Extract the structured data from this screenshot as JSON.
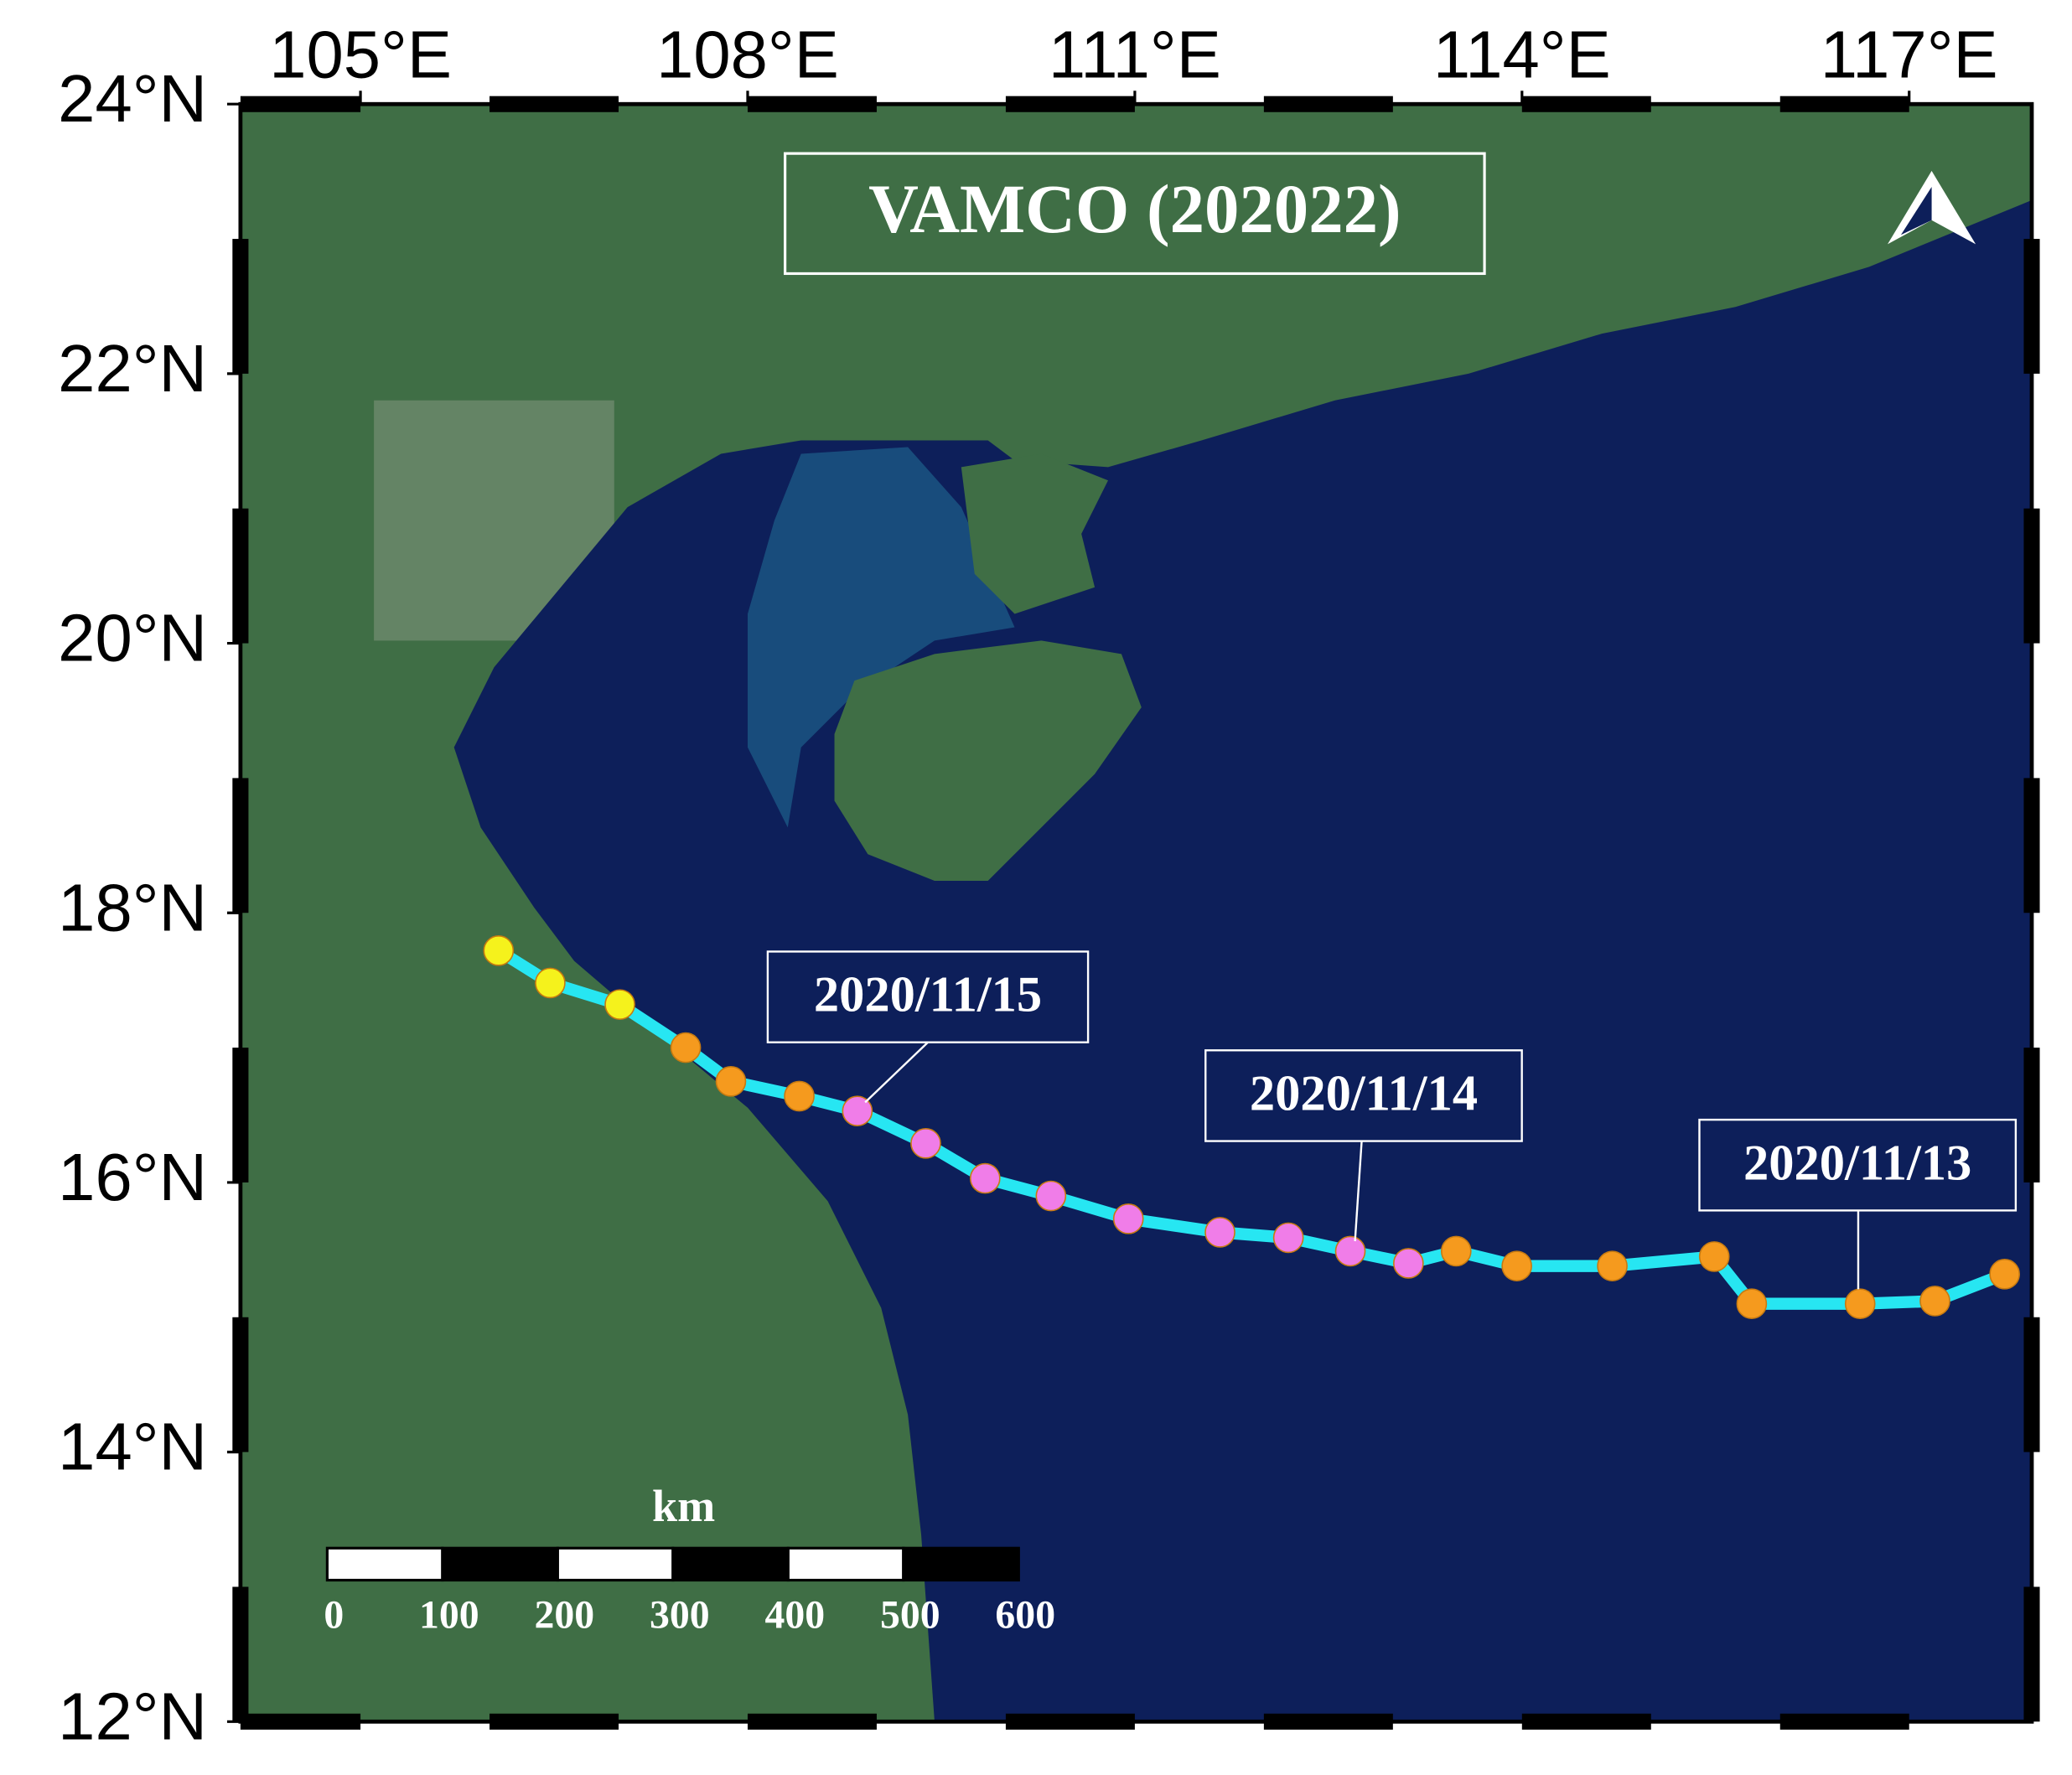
{
  "map": {
    "title": "VAMCO (202022)",
    "xlim": [
      104.07,
      117.95
    ],
    "ylim": [
      12,
      24
    ],
    "lon_ticks": [
      {
        "value": 105,
        "label": "105°E"
      },
      {
        "value": 108,
        "label": "108°E"
      },
      {
        "value": 111,
        "label": "111°E"
      },
      {
        "value": 114,
        "label": "114°E"
      },
      {
        "value": 117,
        "label": "117°E"
      }
    ],
    "lat_ticks": [
      {
        "value": 12,
        "label": "12°N"
      },
      {
        "value": 14,
        "label": "14°N"
      },
      {
        "value": 16,
        "label": "16°N"
      },
      {
        "value": 18,
        "label": "18°N"
      },
      {
        "value": 20,
        "label": "20°N"
      },
      {
        "value": 22,
        "label": "22°N"
      },
      {
        "value": 24,
        "label": "24°N"
      }
    ],
    "track": {
      "color": "#27e6f2",
      "points": [
        {
          "lon": 106.07,
          "lat": 17.72,
          "color": "#f5f21c"
        },
        {
          "lon": 106.47,
          "lat": 17.48,
          "color": "#f5f21c"
        },
        {
          "lon": 107.01,
          "lat": 17.32,
          "color": "#f5f21c"
        },
        {
          "lon": 107.52,
          "lat": 17.0,
          "color": "#f59a1e"
        },
        {
          "lon": 107.87,
          "lat": 16.75,
          "color": "#f59a1e"
        },
        {
          "lon": 108.4,
          "lat": 16.64,
          "color": "#f59a1e"
        },
        {
          "lon": 108.85,
          "lat": 16.53,
          "color": "#f07de8"
        },
        {
          "lon": 109.38,
          "lat": 16.29,
          "color": "#f07de8"
        },
        {
          "lon": 109.84,
          "lat": 16.03,
          "color": "#f07de8"
        },
        {
          "lon": 110.35,
          "lat": 15.9,
          "color": "#f07de8"
        },
        {
          "lon": 110.95,
          "lat": 15.73,
          "color": "#f07de8"
        },
        {
          "lon": 111.66,
          "lat": 15.63,
          "color": "#f07de8"
        },
        {
          "lon": 112.19,
          "lat": 15.59,
          "color": "#f07de8"
        },
        {
          "lon": 112.67,
          "lat": 15.49,
          "color": "#f07de8"
        },
        {
          "lon": 113.12,
          "lat": 15.4,
          "color": "#f07de8"
        },
        {
          "lon": 113.49,
          "lat": 15.49,
          "color": "#f59a1e"
        },
        {
          "lon": 113.96,
          "lat": 15.38,
          "color": "#f59a1e"
        },
        {
          "lon": 114.7,
          "lat": 15.38,
          "color": "#f59a1e"
        },
        {
          "lon": 115.49,
          "lat": 15.45,
          "color": "#f59a1e"
        },
        {
          "lon": 115.78,
          "lat": 15.1,
          "color": "#f59a1e"
        },
        {
          "lon": 116.62,
          "lat": 15.1,
          "color": "#f59a1e"
        },
        {
          "lon": 117.2,
          "lat": 15.12,
          "color": "#f59a1e"
        },
        {
          "lon": 117.74,
          "lat": 15.32,
          "color": "#f59a1e"
        }
      ]
    },
    "date_labels": [
      "2020/11/15",
      "2020/11/14",
      "2020/11/13"
    ],
    "scale_bar": {
      "unit": "km",
      "ticks": [
        0,
        100,
        200,
        300,
        400,
        500,
        600
      ]
    }
  }
}
